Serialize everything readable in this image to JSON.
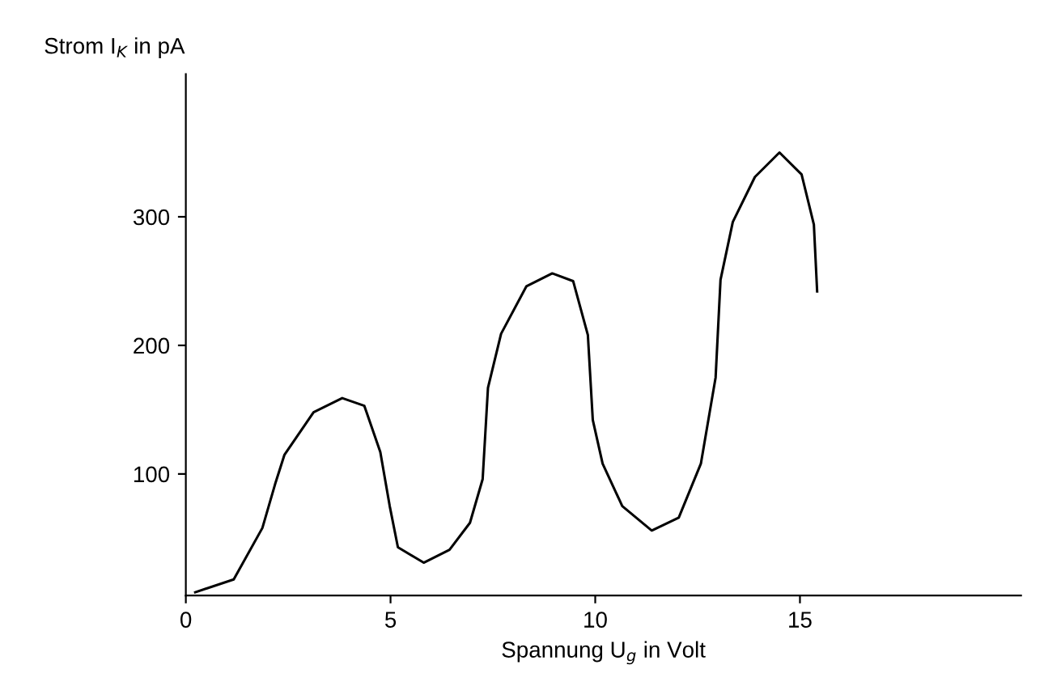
{
  "chart_data": {
    "type": "line",
    "xlabel": "Spannung U$_{g}$ in Volt",
    "ylabel": "Strom I$_{K}$ in pA",
    "series": [
      {
        "color": "#000000",
        "x": [
          0.23,
          1.17,
          1.87,
          2.18,
          2.41,
          3.12,
          3.82,
          4.36,
          4.75,
          4.98,
          5.18,
          5.81,
          6.44,
          6.94,
          7.25,
          7.38,
          7.7,
          8.32,
          8.95,
          9.46,
          9.82,
          9.94,
          10.18,
          10.66,
          11.38,
          12.04,
          12.58,
          12.94,
          13.06,
          13.36,
          13.9,
          14.5,
          15.04,
          15.34,
          15.42
        ],
        "values": [
          8,
          18,
          58,
          92,
          115,
          148,
          159,
          153,
          117,
          75,
          43,
          31,
          41,
          62,
          96,
          167,
          209,
          246,
          256,
          250,
          208,
          142,
          108,
          75,
          56,
          66,
          108,
          175,
          251,
          296,
          331,
          350,
          333,
          294,
          242
        ]
      }
    ],
    "xlim": [
      0,
      20.4
    ],
    "ylim": [
      5.5,
      411
    ],
    "xticks": [
      0,
      5,
      10,
      15
    ],
    "yticks": [
      100,
      200,
      300
    ],
    "grid": false,
    "legend": false,
    "marker": "none",
    "line_style": "solid"
  }
}
